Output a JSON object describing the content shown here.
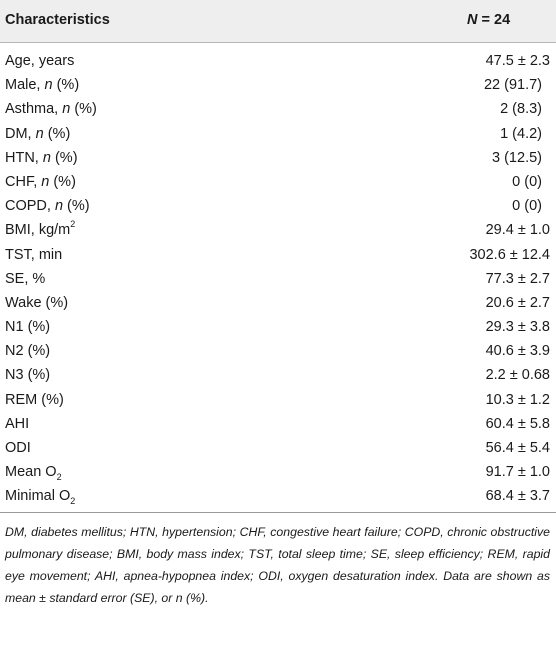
{
  "header": {
    "col1": "Characteristics",
    "col2_italic": "N",
    "col2_rest": " = 24"
  },
  "rows": [
    {
      "label": "Age, years",
      "value": "47.5 ± 2.3"
    },
    {
      "label_pre": "Male, ",
      "label_italic": "n",
      "label_post": " (%)",
      "value": "22 (91.7)"
    },
    {
      "label_pre": "Asthma, ",
      "label_italic": "n",
      "label_post": " (%)",
      "value": "2 (8.3)"
    },
    {
      "label_pre": "DM, ",
      "label_italic": "n",
      "label_post": " (%)",
      "value": "1 (4.2)"
    },
    {
      "label_pre": "HTN, ",
      "label_italic": "n",
      "label_post": " (%)",
      "value": "3 (12.5)"
    },
    {
      "label_pre": "CHF, ",
      "label_italic": "n",
      "label_post": " (%)",
      "value": "0 (0)"
    },
    {
      "label_pre": "COPD, ",
      "label_italic": "n",
      "label_post": " (%)",
      "value": "0 (0)"
    },
    {
      "label_pre": "BMI, kg/m",
      "label_sup": "2",
      "value": "29.4 ± 1.0"
    },
    {
      "label": "TST, min",
      "value": "302.6 ± 12.4"
    },
    {
      "label": "SE, %",
      "value": "77.3 ± 2.7"
    },
    {
      "label": "Wake (%)",
      "value": "20.6 ± 2.7"
    },
    {
      "label": "N1 (%)",
      "value": "29.3 ± 3.8"
    },
    {
      "label": "N2 (%)",
      "value": "40.6 ± 3.9"
    },
    {
      "label": "N3 (%)",
      "value": "2.2 ± 0.68"
    },
    {
      "label": "REM (%)",
      "value": "10.3 ± 1.2"
    },
    {
      "label": "AHI",
      "value": "60.4 ± 5.8"
    },
    {
      "label": "ODI",
      "value": "56.4 ± 5.4"
    },
    {
      "label_pre": "Mean O",
      "label_sub": "2",
      "value": "91.7 ± 1.0"
    },
    {
      "label_pre": "Minimal O",
      "label_sub": "2",
      "value": "68.4 ± 3.7"
    }
  ],
  "footnote": "DM, diabetes mellitus; HTN, hypertension; CHF, congestive heart failure; COPD, chronic obstructive pulmonary disease; BMI, body mass index; TST, total sleep time; SE, sleep efficiency; REM, rapid eye movement; AHI, apnea-hypopnea index; ODI, oxygen desaturation index. Data are shown as mean ± standard error (SE), or n (%)."
}
